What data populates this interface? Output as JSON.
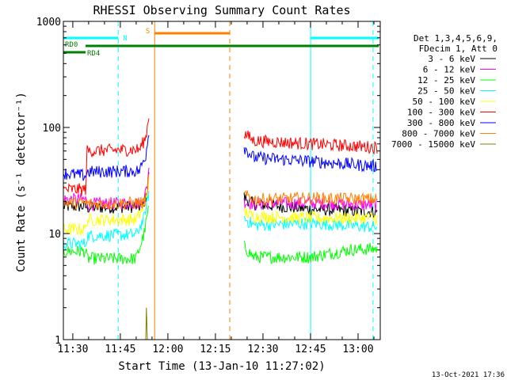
{
  "chart_data": {
    "type": "line",
    "title": "RHESSI Observing Summary Count Rates",
    "xlabel": "Start Time (13-Jan-10 11:27:02)",
    "ylabel": "Count Rate (s⁻¹ detector⁻¹)",
    "yscale": "log",
    "ylim": [
      1,
      1000
    ],
    "xlim_minutes": [
      0,
      99.97
    ],
    "x_start": "11:27:02",
    "x_ticks": [
      "11:30",
      "11:45",
      "12:00",
      "12:15",
      "12:30",
      "12:45",
      "13:00"
    ],
    "x_tick_minutes": [
      2.97,
      17.97,
      32.97,
      47.97,
      62.97,
      77.97,
      92.97
    ],
    "y_tick_labels": [
      "1",
      "10",
      "100",
      "1000"
    ],
    "y_tick_values": [
      1,
      10,
      100,
      1000
    ],
    "grid": false,
    "legend_placement": "right",
    "legend_header": [
      "Det 1,3,4,5,6,9,",
      "FDecim 1, Att 0"
    ],
    "footer_date": "13-Oct-2021 17:36",
    "data_gaps_minutes": [
      [
        27.0,
        57.0
      ]
    ],
    "series": [
      {
        "name": "3 - 6 keV",
        "color": "#000000",
        "x": [
          0,
          7,
          7.5,
          25,
          26.5,
          27,
          57,
          60,
          78,
          99
        ],
        "y": [
          18,
          18,
          17.5,
          18,
          25,
          40,
          22,
          19,
          17,
          16
        ]
      },
      {
        "name": "6 - 12 keV",
        "color": "#ff00ff",
        "x": [
          0,
          7,
          7.5,
          25,
          26.5,
          27,
          57,
          60,
          78,
          99
        ],
        "y": [
          21,
          21,
          19,
          19.5,
          28,
          45,
          20,
          19,
          19.5,
          18.5
        ]
      },
      {
        "name": "12 - 25 keV",
        "color": "#00ff00",
        "x": [
          0,
          7,
          7.5,
          23,
          25.5,
          27,
          57,
          60,
          78,
          90,
          99
        ],
        "y": [
          6.8,
          6.8,
          5.8,
          5.8,
          10,
          18,
          7.5,
          6,
          6,
          7,
          7.2
        ]
      },
      {
        "name": "25 - 50 keV",
        "color": "#00ffff",
        "x": [
          0,
          7,
          7.5,
          23,
          25.5,
          27,
          57,
          60,
          78,
          99
        ],
        "y": [
          8,
          8,
          9.5,
          9.8,
          14,
          25,
          14,
          12,
          12.5,
          11.5
        ]
      },
      {
        "name": "50 - 100 keV",
        "color": "#ffff00",
        "x": [
          0,
          7,
          7.5,
          23,
          25.5,
          27,
          57,
          60,
          78,
          99
        ],
        "y": [
          11,
          11,
          13.5,
          13.5,
          18,
          32,
          16,
          14.5,
          14,
          14
        ]
      },
      {
        "name": "100 - 300 keV",
        "color": "#ff0000",
        "x": [
          0,
          7,
          7.5,
          24,
          26,
          27,
          57,
          60,
          78,
          99
        ],
        "y": [
          26,
          26,
          60,
          62,
          80,
          130,
          88,
          75,
          70,
          65
        ]
      },
      {
        "name": "300 - 800 keV",
        "color": "#0000ff",
        "x": [
          0,
          7,
          7.5,
          24,
          26,
          27,
          57,
          60,
          78,
          99
        ],
        "y": [
          37,
          35,
          38,
          39,
          55,
          95,
          65,
          52,
          48,
          43
        ]
      },
      {
        "name": "800 - 7000 keV",
        "color": "#ff8000",
        "x": [
          0,
          7,
          7.5,
          25,
          26.5,
          27,
          57,
          60,
          78,
          99
        ],
        "y": [
          19.5,
          19.5,
          19,
          19.5,
          22,
          40,
          23,
          21,
          21.5,
          21
        ]
      },
      {
        "name": "7000 - 15000 keV",
        "color": "#808000",
        "x": [
          26,
          26.2,
          26.5
        ],
        "y": [
          1,
          2,
          1
        ]
      }
    ],
    "flags": [
      {
        "label": "N",
        "color": "#00ffff",
        "segments": [
          [
            0,
            17.3
          ],
          [
            78,
            99.5
          ]
        ]
      },
      {
        "label": "S",
        "color": "#ff8000",
        "segments": [
          [
            28.8,
            52.5
          ]
        ]
      },
      {
        "label": "RD0",
        "color": "#008000",
        "segments": [
          [
            7,
            99.5
          ]
        ]
      },
      {
        "label": "RD4",
        "color": "#008000",
        "segments": [
          [
            0,
            7
          ]
        ]
      }
    ],
    "markers": [
      {
        "color": "#00ffff",
        "style": "dashed",
        "x": 17.3
      },
      {
        "color": "#ff8000",
        "style": "solid",
        "x": 28.8
      },
      {
        "color": "#ff8000",
        "style": "dashed",
        "x": 52.5
      },
      {
        "color": "#00ffff",
        "style": "solid",
        "x": 78
      },
      {
        "color": "#00ffff",
        "style": "dashed",
        "x": 97.7
      }
    ]
  }
}
